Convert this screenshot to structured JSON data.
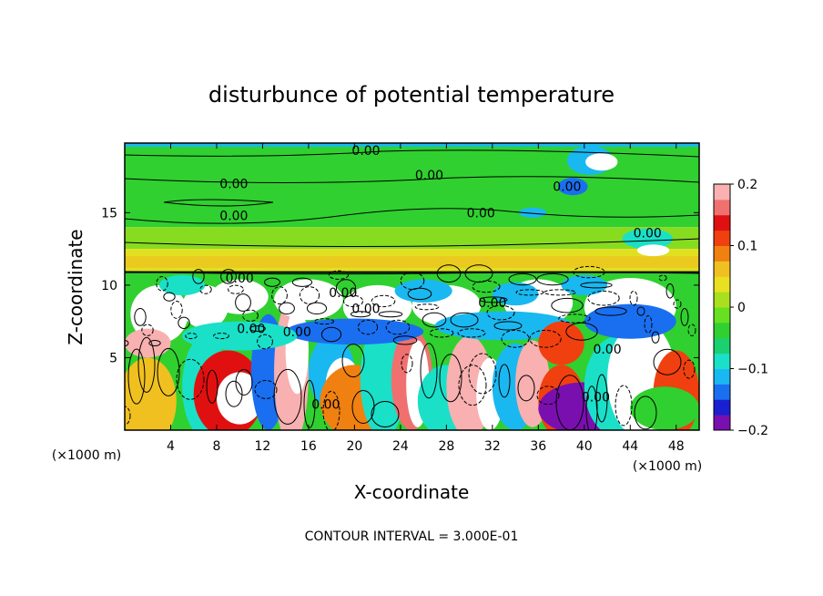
{
  "chart_data": {
    "type": "heatmap",
    "title": "disturbunce of potential temperature",
    "xlabel": "X-coordinate",
    "ylabel": "Z-coordinate",
    "x_unit": "(×1000 m)",
    "y_unit": "(×1000 m)",
    "xlim": [
      0,
      50
    ],
    "ylim": [
      0,
      19.8
    ],
    "x_ticks": [
      "4",
      "8",
      "12",
      "16",
      "20",
      "24",
      "28",
      "32",
      "36",
      "40",
      "44",
      "48"
    ],
    "y_ticks": [
      "5",
      "10",
      "15"
    ],
    "footer": "CONTOUR INTERVAL = 3.000E-01",
    "colorbar": {
      "range": [
        -0.2,
        0.2
      ],
      "tick_labels": [
        "0.2",
        "0.1",
        "0",
        "−0.1",
        "−0.2"
      ],
      "colors": [
        "#7a0fb0",
        "#1a1fd0",
        "#1a6ff0",
        "#1ab8f0",
        "#1ae0c8",
        "#1ad070",
        "#30d030",
        "#66e020",
        "#a8e020",
        "#e8e020",
        "#f0c020",
        "#f08010",
        "#f04010",
        "#e01010",
        "#f07070",
        "#f8b0b0"
      ]
    },
    "contour_labels": [
      {
        "text": "0.00",
        "x": 21,
        "y": 19.3
      },
      {
        "text": "0.00",
        "x": 26.5,
        "y": 17.6
      },
      {
        "text": "0.00",
        "x": 9.5,
        "y": 17.0
      },
      {
        "text": "0.00",
        "x": 38.5,
        "y": 16.8
      },
      {
        "text": "0.00",
        "x": 9.5,
        "y": 14.8
      },
      {
        "text": "0.00",
        "x": 31,
        "y": 15.0
      },
      {
        "text": "0.00",
        "x": 45.5,
        "y": 13.6
      },
      {
        "text": "0.00",
        "x": 10,
        "y": 10.5
      },
      {
        "text": "0.00",
        "x": 19,
        "y": 9.5
      },
      {
        "text": "0.00",
        "x": 21,
        "y": 8.4
      },
      {
        "text": "0.00",
        "x": 32,
        "y": 8.8
      },
      {
        "text": "0.00",
        "x": 11,
        "y": 7.0
      },
      {
        "text": "0.00",
        "x": 15,
        "y": 6.8
      },
      {
        "text": "0.00",
        "x": 42,
        "y": 5.6
      },
      {
        "text": "0.00",
        "x": 17.5,
        "y": 1.8
      },
      {
        "text": "0.00",
        "x": 41,
        "y": 2.3
      }
    ],
    "regions": [
      {
        "kind": "band",
        "y0": 0,
        "y1": 10.9,
        "value": "mixed"
      },
      {
        "kind": "band",
        "y0": 10.9,
        "y1": 12.5,
        "value": 0.07
      },
      {
        "kind": "band",
        "y0": 12.5,
        "y1": 14.0,
        "value": 0.04
      },
      {
        "kind": "band",
        "y0": 14.0,
        "y1": 19.8,
        "value": 0.0
      }
    ]
  }
}
